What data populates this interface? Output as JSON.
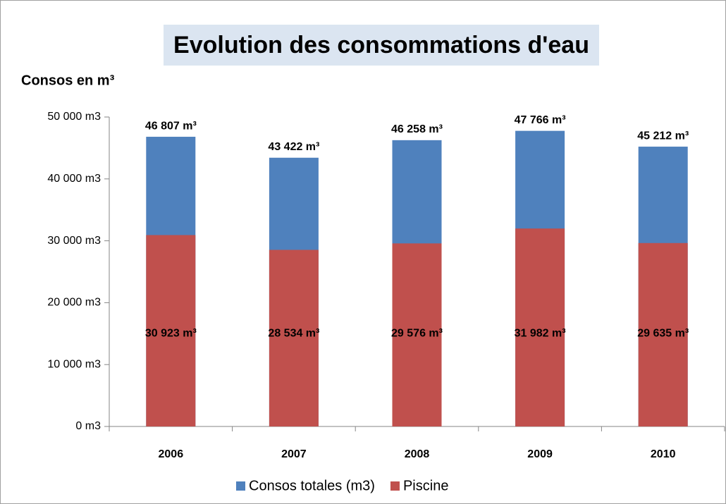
{
  "chart_data": {
    "type": "bar",
    "title": "Evolution des consommations d'eau",
    "y_axis_label": "Consos en m³",
    "categories": [
      "2006",
      "2007",
      "2008",
      "2009",
      "2010"
    ],
    "series": [
      {
        "name": "Consos totales (m3)",
        "color": "#4f81bd",
        "values": [
          46807,
          43422,
          46258,
          47766,
          45212
        ],
        "value_labels": [
          "46 807 m³",
          "43 422 m³",
          "46 258 m³",
          "47 766 m³",
          "45 212 m³"
        ]
      },
      {
        "name": "Piscine",
        "color": "#c0504d",
        "values": [
          30923,
          28534,
          29576,
          31982,
          29635
        ],
        "value_labels": [
          "30 923 m³",
          "28 534 m³",
          "29 576 m³",
          "31 982 m³",
          "29 635  m³"
        ]
      }
    ],
    "ylim": [
      0,
      50000
    ],
    "yticks": [
      {
        "value": 0,
        "label": "0 m3"
      },
      {
        "value": 10000,
        "label": "10 000 m3"
      },
      {
        "value": 20000,
        "label": "20 000 m3"
      },
      {
        "value": 30000,
        "label": "30 000 m3"
      },
      {
        "value": 40000,
        "label": "40 000 m3"
      },
      {
        "value": 50000,
        "label": "50 000 m3"
      }
    ],
    "legend": "bottom"
  }
}
